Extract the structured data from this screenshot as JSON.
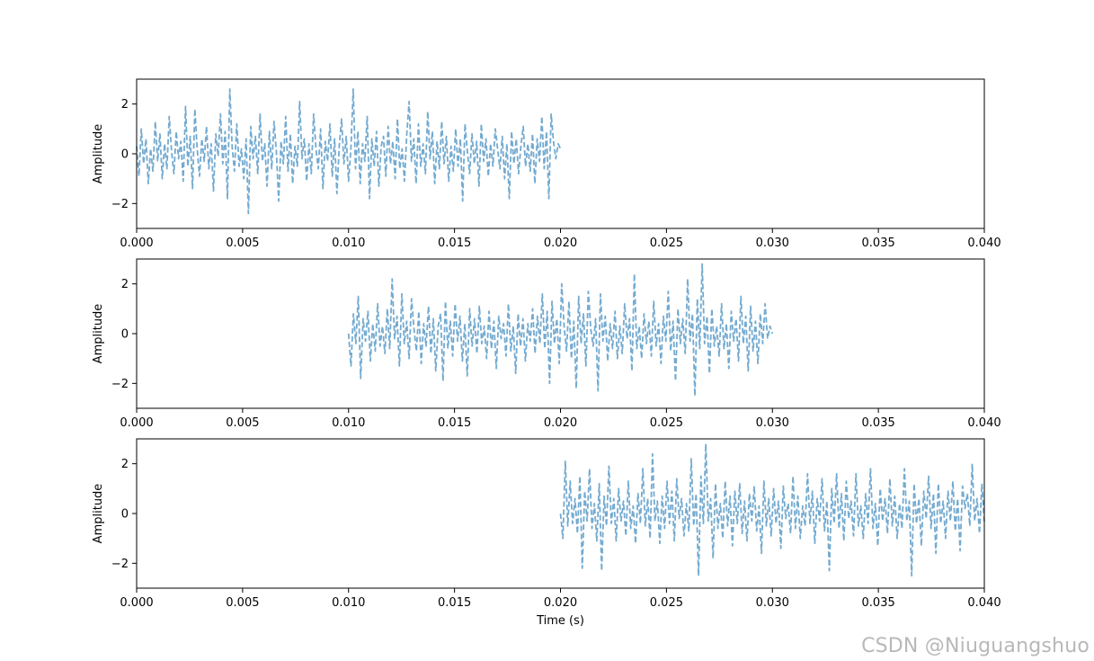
{
  "watermark": "CSDN @Niuguangshuo",
  "style": {
    "line_color": "#5b9bc8",
    "line_style": "dashed",
    "line_alpha": 0.85
  },
  "chart_data": [
    {
      "type": "line",
      "xlabel": "",
      "ylabel": "Amplitude",
      "xlim": [
        0,
        0.04
      ],
      "ylim": [
        -3,
        3
      ],
      "xticks": [
        "0.000",
        "0.005",
        "0.010",
        "0.015",
        "0.020",
        "0.025",
        "0.030",
        "0.035",
        "0.040"
      ],
      "yticks": [
        "−2",
        "0",
        "2"
      ],
      "series": [
        {
          "x_start": 0.0,
          "x_end": 0.02,
          "values": [
            0.3,
            -0.9,
            1.0,
            -0.4,
            0.6,
            -1.2,
            0.2,
            -0.7,
            1.3,
            -0.3,
            0.8,
            -1.0,
            0.4,
            -0.6,
            1.5,
            0.1,
            -0.8,
            0.9,
            -0.2,
            0.5,
            -1.1,
            1.9,
            -0.5,
            0.7,
            -1.4,
            1.8,
            0.2,
            -0.9,
            0.6,
            -0.3,
            1.1,
            -0.6,
            0.4,
            -1.5,
            0.8,
            -0.1,
            1.6,
            -0.4,
            0.9,
            -1.8,
            2.6,
            0.3,
            -0.7,
            1.2,
            -0.5,
            0.2,
            -1.0,
            0.6,
            -2.4,
            1.1,
            -0.2,
            0.7,
            -0.8,
            1.6,
            -0.3,
            0.4,
            -1.3,
            0.9,
            -0.6,
            1.3,
            0.1,
            -1.9,
            0.5,
            -0.4,
            1.5,
            -0.7,
            0.8,
            -1.2,
            0.3,
            -0.5,
            2.1,
            -0.2,
            0.6,
            -1.1,
            0.4,
            -0.8,
            1.6,
            0.2,
            -0.6,
            1.0,
            -1.4,
            0.5,
            -0.3,
            1.2,
            -0.9,
            0.6,
            -1.6,
            0.3,
            1.4,
            -0.4,
            0.7,
            -1.1,
            0.2,
            2.6,
            -0.6,
            0.9,
            -1.2,
            0.4,
            -0.3,
            1.5,
            -1.8,
            0.6,
            -0.5,
            0.9,
            -1.3,
            0.3,
            0.7,
            -0.9,
            1.1,
            -0.4,
            0.5,
            -1.0,
            1.4,
            -0.6,
            0.2,
            -1.1,
            0.8,
            2.1,
            -0.3,
            0.6,
            -1.2,
            1.2,
            -0.5,
            0.4,
            -0.8,
            1.7,
            -0.2,
            0.9,
            -1.2,
            0.5,
            -0.6,
            1.3,
            -0.4,
            0.7,
            -1.1,
            0.3,
            -0.7,
            1.0,
            -0.5,
            0.6,
            -1.9,
            1.2,
            0.1,
            -0.8,
            0.8,
            -0.4,
            0.5,
            -1.3,
            1.2,
            -0.3,
            0.6,
            -0.9,
            0.4,
            -0.5,
            1.0,
            0.2,
            -0.6,
            0.7,
            -1.0,
            0.4,
            -1.8,
            0.9,
            -0.4,
            0.6,
            -0.8,
            0.3,
            1.1,
            -0.5,
            0.4,
            -0.7,
            0.8,
            -1.2,
            0.6,
            -0.3,
            1.5,
            -0.6,
            0.9,
            -1.8,
            1.6,
            0.5,
            -0.2,
            0.4,
            0.2
          ]
        }
      ]
    },
    {
      "type": "line",
      "xlabel": "",
      "ylabel": "Amplitude",
      "xlim": [
        0,
        0.04
      ],
      "ylim": [
        -3,
        3
      ],
      "xticks": [
        "0.000",
        "0.005",
        "0.010",
        "0.015",
        "0.020",
        "0.025",
        "0.030",
        "0.035",
        "0.040"
      ],
      "yticks": [
        "−2",
        "0",
        "2"
      ],
      "series": [
        {
          "x_start": 0.01,
          "x_end": 0.03,
          "values": [
            0.0,
            -1.3,
            0.8,
            -0.4,
            1.5,
            -1.8,
            0.6,
            -0.3,
            0.9,
            -1.1,
            0.4,
            -0.7,
            1.2,
            -0.5,
            0.3,
            -0.8,
            1.0,
            -0.6,
            2.2,
            -0.2,
            0.7,
            -1.3,
            1.6,
            -0.4,
            0.5,
            -1.0,
            1.4,
            0.2,
            -0.7,
            0.9,
            -1.2,
            0.4,
            -0.5,
            1.1,
            -0.8,
            0.6,
            -1.5,
            0.3,
            0.8,
            -1.9,
            1.3,
            -0.6,
            0.5,
            -0.9,
            1.2,
            -0.3,
            0.7,
            -1.1,
            0.4,
            -1.7,
            1.0,
            -0.5,
            0.6,
            -0.8,
            1.1,
            -0.4,
            0.3,
            -1.0,
            0.9,
            -0.6,
            0.5,
            -1.4,
            0.7,
            -0.2,
            0.4,
            -0.9,
            1.2,
            -0.7,
            0.3,
            -1.6,
            0.8,
            -0.5,
            0.6,
            -1.1,
            0.4,
            -0.3,
            1.0,
            -0.8,
            0.7,
            -0.4,
            1.6,
            -0.6,
            0.9,
            -2.0,
            1.3,
            -0.4,
            0.6,
            -1.2,
            2.0,
            0.3,
            -0.7,
            1.3,
            -1.0,
            0.5,
            -2.2,
            1.5,
            -0.4,
            0.8,
            -1.3,
            1.7,
            0.2,
            -0.5,
            0.6,
            -2.3,
            1.6,
            -0.3,
            0.7,
            -1.1,
            0.4,
            -0.6,
            0.9,
            -1.0,
            0.3,
            -0.8,
            1.2,
            -0.2,
            0.6,
            -1.5,
            2.4,
            -0.6,
            0.3,
            -1.0,
            0.8,
            -0.4,
            0.5,
            -0.9,
            1.3,
            -0.5,
            0.4,
            -1.2,
            0.7,
            -0.3,
            1.7,
            -0.7,
            0.5,
            -1.9,
            1.0,
            -0.4,
            0.6,
            -0.8,
            2.2,
            -0.3,
            0.8,
            -2.5,
            1.4,
            -0.6,
            2.8,
            -0.4,
            0.7,
            -1.6,
            1.0,
            -0.5,
            0.3,
            -0.9,
            1.2,
            -0.6,
            0.4,
            -1.4,
            0.9,
            -0.3,
            0.6,
            -1.1,
            1.5,
            -0.4,
            0.7,
            -1.5,
            1.1,
            -0.7,
            0.5,
            -1.2,
            0.8,
            -0.4,
            1.2,
            -0.2,
            0.3,
            0.0
          ]
        }
      ]
    },
    {
      "type": "line",
      "xlabel": "Time (s)",
      "ylabel": "Amplitude",
      "xlim": [
        0,
        0.04
      ],
      "ylim": [
        -3,
        3
      ],
      "xticks": [
        "0.000",
        "0.005",
        "0.010",
        "0.015",
        "0.020",
        "0.025",
        "0.030",
        "0.035",
        "0.040"
      ],
      "yticks": [
        "−2",
        "0",
        "2"
      ],
      "series": [
        {
          "x_start": 0.02,
          "x_end": 0.04,
          "values": [
            0.0,
            -1.0,
            2.1,
            -0.5,
            1.3,
            -0.4,
            0.6,
            -0.8,
            1.5,
            -2.2,
            0.9,
            -0.3,
            1.8,
            -0.6,
            0.4,
            -1.1,
            1.2,
            -2.3,
            0.7,
            -0.5,
            1.9,
            -0.4,
            0.6,
            -1.1,
            1.0,
            -0.3,
            0.5,
            -0.9,
            1.3,
            -0.6,
            0.3,
            -1.2,
            0.8,
            -0.4,
            1.8,
            -0.5,
            0.6,
            -1.0,
            2.4,
            -0.3,
            0.5,
            -1.2,
            0.7,
            -0.6,
            1.3,
            -0.4,
            0.9,
            -1.1,
            1.4,
            -0.2,
            0.6,
            -0.9,
            0.4,
            -0.7,
            2.2,
            -0.5,
            0.8,
            -2.5,
            1.5,
            -0.4,
            2.8,
            -0.3,
            0.6,
            -1.8,
            1.2,
            -0.6,
            0.4,
            -1.0,
            1.3,
            -0.5,
            0.7,
            -1.3,
            0.9,
            -0.4,
            1.2,
            -0.8,
            0.5,
            -1.1,
            0.8,
            -0.3,
            1.1,
            -0.7,
            0.3,
            -1.6,
            1.3,
            -0.5,
            0.6,
            -0.9,
            1.0,
            -0.4,
            0.5,
            -1.4,
            1.1,
            -0.2,
            0.4,
            -0.8,
            1.5,
            -0.6,
            0.7,
            -1.0,
            0.3,
            -0.5,
            1.6,
            -0.4,
            0.9,
            -1.2,
            0.6,
            -0.3,
            1.4,
            -0.7,
            0.5,
            -2.3,
            1.0,
            -0.4,
            1.6,
            -0.6,
            0.8,
            -1.1,
            1.3,
            -0.2,
            0.5,
            -0.9,
            1.6,
            -0.5,
            0.3,
            -1.0,
            0.8,
            -0.4,
            1.8,
            -0.6,
            0.4,
            -1.3,
            1.0,
            -0.3,
            0.6,
            -0.8,
            1.4,
            -0.5,
            0.7,
            -1.0,
            0.4,
            -0.6,
            1.8,
            -0.3,
            0.5,
            -2.5,
            1.2,
            -0.4,
            0.6,
            -1.3,
            0.9,
            -0.2,
            1.5,
            -0.6,
            0.8,
            -1.6,
            1.2,
            -0.4,
            0.5,
            -1.0,
            0.9,
            -0.3,
            1.3,
            -0.7,
            0.6,
            -1.5,
            1.1,
            0.2,
            0.8,
            -0.5,
            2.0,
            -0.3,
            0.6,
            -0.8,
            1.2,
            -0.4
          ]
        }
      ]
    }
  ]
}
